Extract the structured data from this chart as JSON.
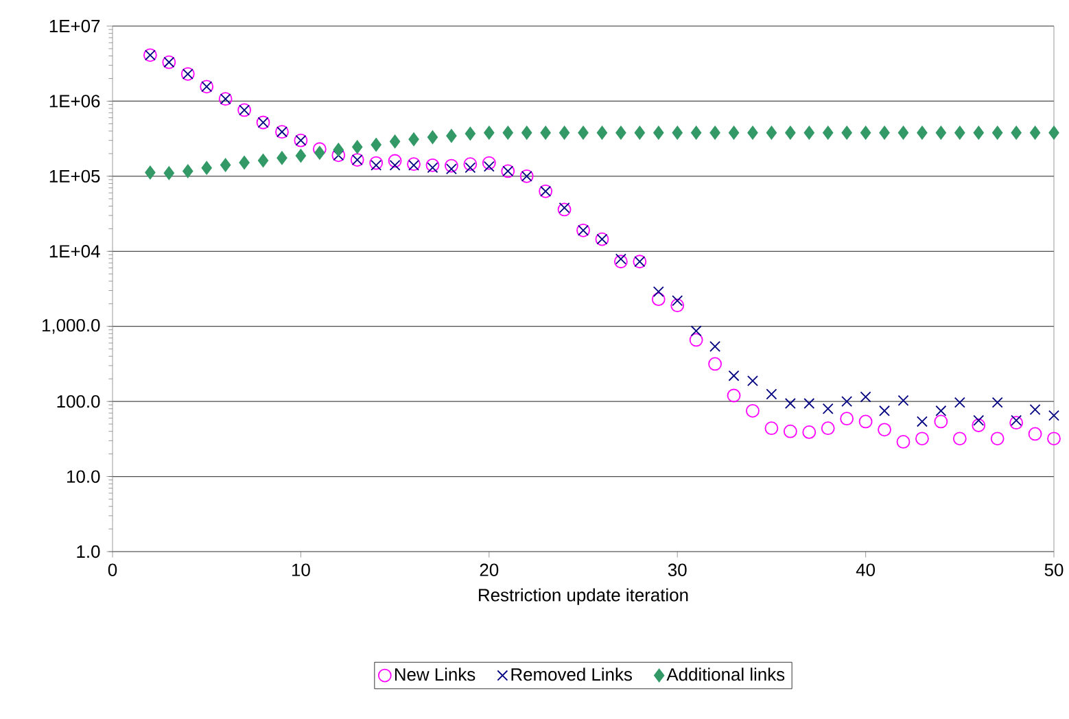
{
  "chart_data": {
    "type": "scatter",
    "xlabel": "Restriction update iteration",
    "x": [
      2,
      3,
      4,
      5,
      6,
      7,
      8,
      9,
      10,
      11,
      12,
      13,
      14,
      15,
      16,
      17,
      18,
      19,
      20,
      21,
      22,
      23,
      24,
      25,
      26,
      27,
      28,
      29,
      30,
      31,
      32,
      33,
      34,
      35,
      36,
      37,
      38,
      39,
      40,
      41,
      42,
      43,
      44,
      45,
      46,
      47,
      48,
      49,
      50
    ],
    "series": [
      {
        "name": "New Links",
        "color": "#ff00ff",
        "marker": "circle",
        "values": [
          4100000,
          3300000,
          2300000,
          1560000,
          1070000,
          760000,
          520000,
          390000,
          300000,
          230000,
          190000,
          165000,
          150000,
          160000,
          145000,
          140000,
          138000,
          145000,
          150000,
          117000,
          100000,
          63000,
          36000,
          19000,
          14500,
          7300,
          7300,
          2300,
          1900,
          660,
          316,
          120,
          75,
          44,
          40,
          39,
          44,
          59,
          54,
          42,
          29,
          32,
          54,
          32,
          48,
          32,
          52,
          37,
          32
        ]
      },
      {
        "name": "Removed Links",
        "color": "#000080",
        "marker": "cross",
        "values": [
          4100000,
          3300000,
          2300000,
          1560000,
          1070000,
          760000,
          520000,
          390000,
          300000,
          null,
          190000,
          165000,
          140000,
          140000,
          140000,
          130000,
          125000,
          130000,
          135000,
          117000,
          100000,
          63000,
          38000,
          19000,
          14500,
          7900,
          7300,
          2900,
          2200,
          870,
          540,
          220,
          188,
          125,
          94,
          94,
          80,
          100,
          115,
          75,
          103,
          54,
          75,
          97,
          56,
          97,
          56,
          78,
          65
        ]
      },
      {
        "name": "Additional links",
        "color": "#339966",
        "marker": "diamond",
        "values": [
          112000,
          110000,
          117000,
          129000,
          141000,
          152000,
          162000,
          175000,
          187000,
          205000,
          225000,
          245000,
          263000,
          290000,
          310000,
          330000,
          345000,
          370000,
          380000,
          380000,
          380000,
          380000,
          380000,
          380000,
          380000,
          380000,
          380000,
          380000,
          380000,
          380000,
          380000,
          380000,
          380000,
          380000,
          380000,
          380000,
          380000,
          380000,
          380000,
          380000,
          380000,
          380000,
          380000,
          380000,
          380000,
          380000,
          380000,
          380000,
          380000
        ]
      }
    ],
    "log": "y",
    "grid": "y",
    "legend": "bottom",
    "xlim": [
      0,
      50
    ],
    "xticks": [
      0,
      10,
      20,
      30,
      40,
      50
    ],
    "ylim": [
      1,
      10000000
    ],
    "yticks": [
      {
        "value": 1,
        "label": "1.0"
      },
      {
        "value": 10,
        "label": "10.0"
      },
      {
        "value": 100,
        "label": "100.0"
      },
      {
        "value": 1000,
        "label": "1,000.0"
      },
      {
        "value": 10000,
        "label": "1E+04"
      },
      {
        "value": 100000,
        "label": "1E+05"
      },
      {
        "value": 1000000,
        "label": "1E+06"
      },
      {
        "value": 10000000,
        "label": "1E+07"
      }
    ]
  }
}
